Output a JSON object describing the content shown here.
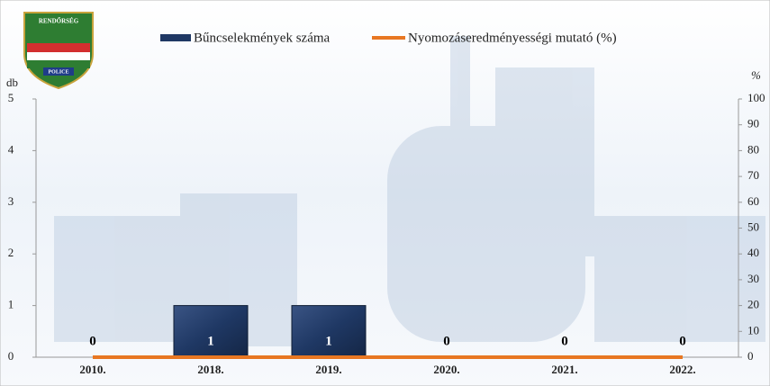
{
  "logo": {
    "top": "RENDŐRSÉG",
    "bottom": "POLICE"
  },
  "chart_data": {
    "type": "bar-line",
    "categories": [
      "2010.",
      "2018.",
      "2019.",
      "2020.",
      "2021.",
      "2022."
    ],
    "series": [
      {
        "name": "Bűncselekmények száma",
        "type": "bar",
        "color": "#1f3864",
        "values": [
          0,
          1,
          1,
          0,
          0,
          0
        ]
      },
      {
        "name": "Nyomozáseredményességi mutató (%)",
        "type": "line",
        "color": "#e87722",
        "axis": "y2",
        "values": [
          0,
          0,
          0,
          0,
          0,
          0
        ]
      }
    ],
    "ylabel": "db",
    "y2label": "%",
    "ylim": [
      0,
      5
    ],
    "yticks": [
      0,
      1,
      2,
      3,
      4,
      5
    ],
    "y2lim": [
      0,
      100
    ],
    "y2ticks": [
      0,
      10,
      20,
      30,
      40,
      50,
      60,
      70,
      80,
      90,
      100
    ],
    "data_labels": true
  }
}
